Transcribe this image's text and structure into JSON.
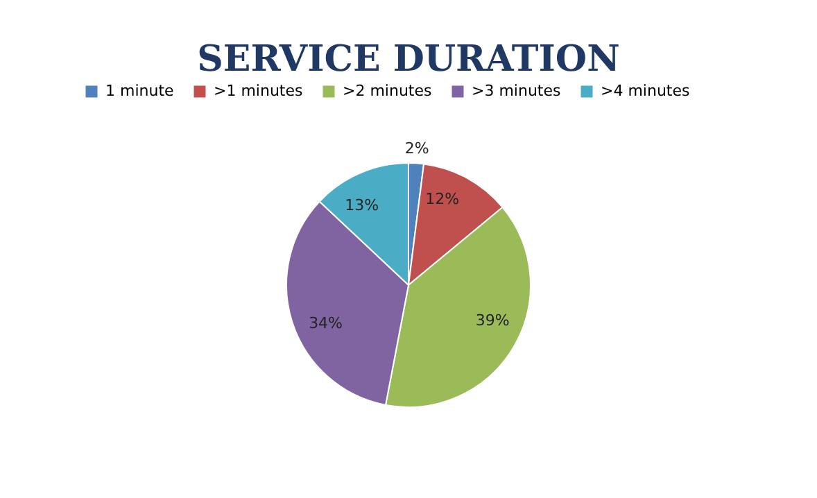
{
  "chart_data": {
    "type": "pie",
    "title": "SERVICE DURATION",
    "categories": [
      "1 minute",
      ">1 minutes",
      ">2 minutes",
      ">3 minutes",
      ">4 minutes"
    ],
    "values": [
      2,
      12,
      39,
      34,
      13
    ],
    "colors": [
      "#4f81bd",
      "#c0504d",
      "#9bbb59",
      "#8064a2",
      "#4bacc6"
    ],
    "value_labels": [
      "2%",
      "12%",
      "39%",
      "34%",
      "13%"
    ],
    "legend": "top"
  }
}
